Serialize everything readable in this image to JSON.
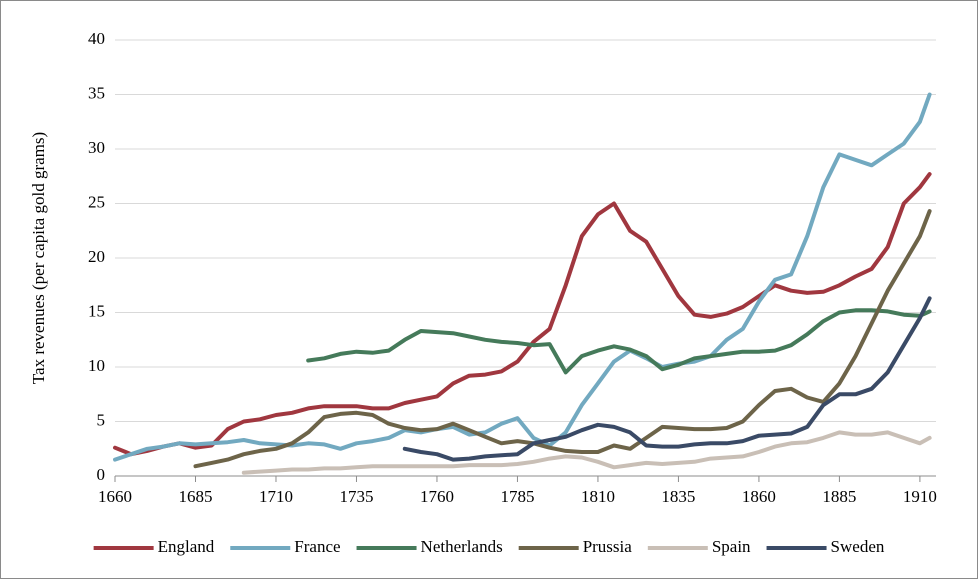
{
  "chart_data": {
    "type": "line",
    "ylabel": "Tax revenues (per capita gold grams)",
    "x": [
      1660,
      1665,
      1670,
      1675,
      1680,
      1685,
      1690,
      1695,
      1700,
      1705,
      1710,
      1715,
      1720,
      1725,
      1730,
      1735,
      1740,
      1745,
      1750,
      1755,
      1760,
      1765,
      1770,
      1775,
      1780,
      1785,
      1790,
      1795,
      1800,
      1805,
      1810,
      1815,
      1820,
      1825,
      1830,
      1835,
      1840,
      1845,
      1850,
      1855,
      1860,
      1865,
      1870,
      1875,
      1880,
      1885,
      1890,
      1895,
      1900,
      1905,
      1910,
      1913
    ],
    "xlim": [
      1660,
      1915
    ],
    "xticks": [
      1660,
      1685,
      1710,
      1735,
      1760,
      1785,
      1810,
      1835,
      1860,
      1885,
      1910
    ],
    "ylim": [
      0,
      40
    ],
    "yticks": [
      0,
      5,
      10,
      15,
      20,
      25,
      30,
      35,
      40
    ],
    "grid": true,
    "legend": "bottom",
    "series": [
      {
        "name": "England",
        "color": "#a0373f",
        "values": [
          2.6,
          2.0,
          2.3,
          2.7,
          3.0,
          2.6,
          2.8,
          4.3,
          5.0,
          5.2,
          5.6,
          5.8,
          6.2,
          6.4,
          6.4,
          6.4,
          6.2,
          6.2,
          6.7,
          7.0,
          7.3,
          8.5,
          9.2,
          9.3,
          9.6,
          10.5,
          12.3,
          13.5,
          17.5,
          22.0,
          24.0,
          25.0,
          22.5,
          21.5,
          19.0,
          16.5,
          14.8,
          14.6,
          14.9,
          15.5,
          16.5,
          17.5,
          17.0,
          16.8,
          16.9,
          17.5,
          18.3,
          19.0,
          21.0,
          25.0,
          26.5,
          27.7
        ]
      },
      {
        "name": "France",
        "color": "#72a9c0",
        "values": [
          1.5,
          2.0,
          2.5,
          2.7,
          3.0,
          2.9,
          3.0,
          3.1,
          3.3,
          3.0,
          2.9,
          2.8,
          3.0,
          2.9,
          2.5,
          3.0,
          3.2,
          3.5,
          4.2,
          4.0,
          4.3,
          4.5,
          3.8,
          4.0,
          4.8,
          5.3,
          3.5,
          2.8,
          4.0,
          6.5,
          8.5,
          10.5,
          11.5,
          10.8,
          10.0,
          10.3,
          10.5,
          11.0,
          12.5,
          13.5,
          16.0,
          18.0,
          18.5,
          22.0,
          26.5,
          29.5,
          29.0,
          28.5,
          29.5,
          30.5,
          32.5,
          35.0
        ]
      },
      {
        "name": "Netherlands",
        "color": "#457a5a",
        "values": [
          null,
          null,
          null,
          null,
          null,
          null,
          null,
          null,
          null,
          null,
          null,
          null,
          10.6,
          10.8,
          11.2,
          11.4,
          11.3,
          11.5,
          12.5,
          13.3,
          13.2,
          13.1,
          12.8,
          12.5,
          12.3,
          12.2,
          12.0,
          12.1,
          9.5,
          11.0,
          11.5,
          11.9,
          11.6,
          11.0,
          9.8,
          10.2,
          10.8,
          11.0,
          11.2,
          11.4,
          11.4,
          11.5,
          12.0,
          13.0,
          14.2,
          15.0,
          15.2,
          15.2,
          15.1,
          14.8,
          14.7,
          15.1
        ]
      },
      {
        "name": "Prussia",
        "color": "#6d6449",
        "values": [
          null,
          null,
          null,
          null,
          null,
          0.9,
          1.2,
          1.5,
          2.0,
          2.3,
          2.5,
          3.0,
          4.0,
          5.4,
          5.7,
          5.8,
          5.6,
          4.8,
          4.4,
          4.2,
          4.3,
          4.8,
          4.2,
          3.6,
          3.0,
          3.2,
          3.0,
          2.6,
          2.3,
          2.2,
          2.2,
          2.8,
          2.5,
          3.5,
          4.5,
          4.4,
          4.3,
          4.3,
          4.4,
          5.0,
          6.5,
          7.8,
          8.0,
          7.2,
          6.8,
          8.5,
          11.0,
          14.0,
          17.0,
          19.5,
          22.0,
          24.3
        ]
      },
      {
        "name": "Spain",
        "color": "#c9bfb6",
        "values": [
          null,
          null,
          null,
          null,
          null,
          null,
          null,
          null,
          0.3,
          0.4,
          0.5,
          0.6,
          0.6,
          0.7,
          0.7,
          0.8,
          0.9,
          0.9,
          0.9,
          0.9,
          0.9,
          0.9,
          1.0,
          1.0,
          1.0,
          1.1,
          1.3,
          1.6,
          1.8,
          1.7,
          1.3,
          0.8,
          1.0,
          1.2,
          1.1,
          1.2,
          1.3,
          1.6,
          1.7,
          1.8,
          2.2,
          2.7,
          3.0,
          3.1,
          3.5,
          4.0,
          3.8,
          3.8,
          4.0,
          3.5,
          3.0,
          3.5
        ]
      },
      {
        "name": "Sweden",
        "color": "#3a4a66",
        "values": [
          null,
          null,
          null,
          null,
          null,
          null,
          null,
          null,
          null,
          null,
          null,
          null,
          null,
          null,
          null,
          null,
          null,
          null,
          2.5,
          2.2,
          2.0,
          1.5,
          1.6,
          1.8,
          1.9,
          2.0,
          3.0,
          3.3,
          3.6,
          4.2,
          4.7,
          4.5,
          4.0,
          2.8,
          2.7,
          2.7,
          2.9,
          3.0,
          3.0,
          3.2,
          3.7,
          3.8,
          3.9,
          4.5,
          6.5,
          7.5,
          7.5,
          8.0,
          9.5,
          12.0,
          14.5,
          16.3
        ]
      }
    ]
  }
}
